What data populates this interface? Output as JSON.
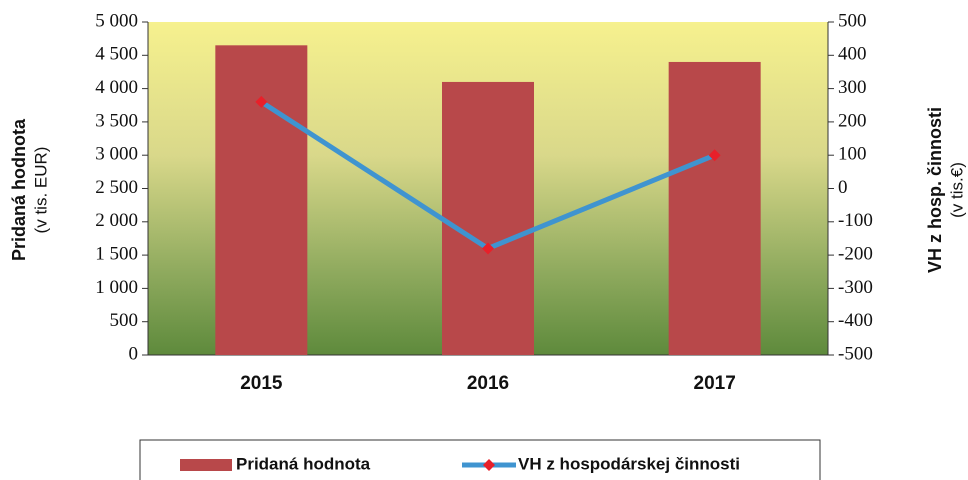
{
  "chart_data": {
    "type": "bar",
    "categories": [
      "2015",
      "2016",
      "2017"
    ],
    "series": [
      {
        "name": "Pridaná hodnota",
        "type": "bar",
        "color": "#b8484a",
        "values": [
          4650,
          4100,
          4400
        ]
      },
      {
        "name": "VH z hospodárskej činnosti",
        "type": "line",
        "axis": "y2",
        "color": "#3f94d0",
        "marker_color": "#e8202a",
        "values": [
          260,
          -180,
          100
        ]
      }
    ],
    "y_label": [
      "Pridaná hodnota",
      "(v tis. EUR)"
    ],
    "y2_label": [
      "VH z hosp. činnosti",
      "(v tis.€)"
    ],
    "ylim": [
      0,
      5000
    ],
    "yticks": [
      0,
      500,
      {
        "value": 1000,
        "label": "1 000"
      },
      {
        "value": 1500,
        "label": "1 500"
      },
      {
        "value": 2000,
        "label": "2 000"
      },
      {
        "value": 2500,
        "label": "2 500"
      },
      {
        "value": 3000,
        "label": "3 000"
      },
      {
        "value": 3500,
        "label": "3 500"
      },
      {
        "value": 4000,
        "label": "4 000"
      },
      {
        "value": 4500,
        "label": "4 500"
      },
      {
        "value": 5000,
        "label": "5 000"
      }
    ],
    "y2lim": [
      -500,
      500
    ],
    "y2ticks": [
      -500,
      -400,
      -300,
      -200,
      -100,
      0,
      100,
      200,
      300,
      400,
      500
    ],
    "legend": "bottom"
  }
}
